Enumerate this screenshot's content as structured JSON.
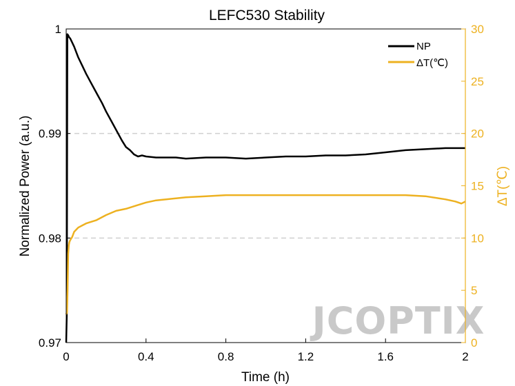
{
  "chart_data": {
    "type": "line",
    "title": "LEFC530 Stability",
    "xlabel": "Time (h)",
    "ylabel_left": "Normalized Power (a.u.)",
    "ylabel_right": "ΔT(℃)",
    "x_ticks": [
      "0",
      "0.4",
      "0.8",
      "1.2",
      "1.6",
      "2"
    ],
    "y_left_ticks": [
      "0.97",
      "0.98",
      "0.99",
      "1"
    ],
    "y_right_ticks": [
      "0",
      "5",
      "10",
      "15",
      "20",
      "25",
      "30"
    ],
    "xlim": [
      0,
      2
    ],
    "ylim_left": [
      0.97,
      1
    ],
    "ylim_right": [
      0,
      30
    ],
    "x_scale": "linear",
    "grid": "dashed horizontal at 0.98 and 0.99",
    "legend_position": "top-right",
    "colors": {
      "np": "#000000",
      "dt": "#EDB120",
      "grid": "#d0d0d0",
      "watermark": "#c9c9c9"
    },
    "series": [
      {
        "name": "NP",
        "axis": "left",
        "x": [
          0,
          0.003,
          0.006,
          0.01,
          0.015,
          0.02,
          0.03,
          0.04,
          0.05,
          0.06,
          0.08,
          0.1,
          0.12,
          0.14,
          0.16,
          0.18,
          0.2,
          0.22,
          0.24,
          0.26,
          0.28,
          0.3,
          0.32,
          0.34,
          0.36,
          0.38,
          0.4,
          0.45,
          0.5,
          0.55,
          0.6,
          0.7,
          0.8,
          0.9,
          1.0,
          1.1,
          1.2,
          1.3,
          1.4,
          1.5,
          1.6,
          1.7,
          1.8,
          1.9,
          2.0
        ],
        "values": [
          0.97,
          0.9728,
          0.9995,
          0.9994,
          0.9992,
          0.9991,
          0.9987,
          0.9983,
          0.9978,
          0.9973,
          0.9965,
          0.9957,
          0.995,
          0.9943,
          0.9936,
          0.9929,
          0.9921,
          0.9914,
          0.9907,
          0.99,
          0.9893,
          0.9887,
          0.9884,
          0.988,
          0.9878,
          0.9879,
          0.9878,
          0.9877,
          0.9877,
          0.9877,
          0.9876,
          0.9877,
          0.9877,
          0.9876,
          0.9877,
          0.9878,
          0.9878,
          0.9879,
          0.9879,
          0.988,
          0.9882,
          0.9884,
          0.9885,
          0.9886,
          0.9886
        ]
      },
      {
        "name": "ΔT(℃)",
        "axis": "right",
        "x": [
          0,
          0.004,
          0.007,
          0.01,
          0.013,
          0.016,
          0.02,
          0.03,
          0.04,
          0.05,
          0.06,
          0.08,
          0.1,
          0.15,
          0.2,
          0.25,
          0.3,
          0.35,
          0.4,
          0.45,
          0.5,
          0.6,
          0.7,
          0.8,
          0.9,
          1.0,
          1.1,
          1.2,
          1.3,
          1.4,
          1.5,
          1.6,
          1.7,
          1.8,
          1.9,
          1.95,
          1.98,
          2.0
        ],
        "values": [
          2.7,
          2.9,
          5,
          8.5,
          9.3,
          9.6,
          9.8,
          10.1,
          10.6,
          10.8,
          11,
          11.2,
          11.4,
          11.7,
          12.2,
          12.6,
          12.8,
          13.1,
          13.4,
          13.6,
          13.7,
          13.9,
          14,
          14.1,
          14.1,
          14.1,
          14.1,
          14.1,
          14.1,
          14.1,
          14.1,
          14.1,
          14.1,
          14.0,
          13.7,
          13.5,
          13.3,
          13.5
        ]
      }
    ]
  },
  "watermark": {
    "text": "JCOPTIX"
  }
}
